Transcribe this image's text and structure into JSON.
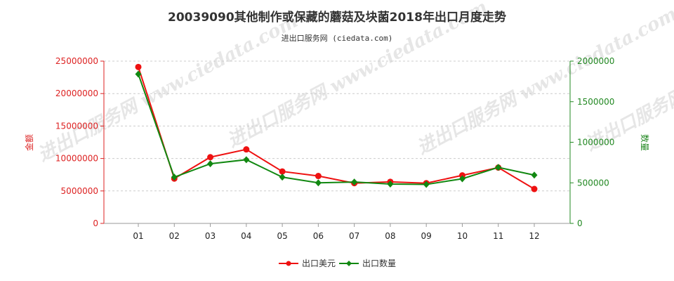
{
  "title": "20039090其他制作或保藏的蘑菇及块菌2018年出口月度走势",
  "subtitle": "进出口服务网 (ciedata.com)",
  "watermark": "进出口服务网 www.ciedata.com",
  "colors": {
    "series1": "#ee1111",
    "series2": "#118811",
    "left_axis": "#dd2222",
    "right_axis": "#228822",
    "grid": "#cccccc",
    "axis": "#999999"
  },
  "chart_data": {
    "type": "line",
    "title": "20039090其他制作或保藏的蘑菇及块菌2018年出口月度走势",
    "categories": [
      "01",
      "02",
      "03",
      "04",
      "05",
      "06",
      "07",
      "08",
      "09",
      "10",
      "11",
      "12"
    ],
    "y_left": {
      "label": "金额",
      "ylim": [
        0,
        25000000
      ],
      "ticks": [
        0,
        5000000,
        10000000,
        15000000,
        20000000,
        25000000
      ],
      "tick_labels": [
        "0",
        "5000000",
        "10000000",
        "15000000",
        "20000000",
        "25000000"
      ]
    },
    "y_right": {
      "label": "数量",
      "ylim": [
        0,
        2000000
      ],
      "ticks": [
        0,
        500000,
        1000000,
        1500000,
        2000000
      ],
      "tick_labels": [
        "0",
        "500000",
        "1000000",
        "1500000",
        "2000000"
      ]
    },
    "series": [
      {
        "name": "出口美元",
        "axis": "left",
        "marker": "circle",
        "values": [
          24100000,
          6900000,
          10200000,
          11400000,
          8000000,
          7300000,
          6200000,
          6400000,
          6200000,
          7400000,
          8600000,
          5300000
        ]
      },
      {
        "name": "出口数量",
        "axis": "right",
        "marker": "diamond",
        "values": [
          1840000,
          570000,
          735000,
          785000,
          570000,
          500000,
          510000,
          485000,
          480000,
          550000,
          690000,
          595000
        ]
      }
    ],
    "grid": true,
    "legend_position": "bottom"
  }
}
